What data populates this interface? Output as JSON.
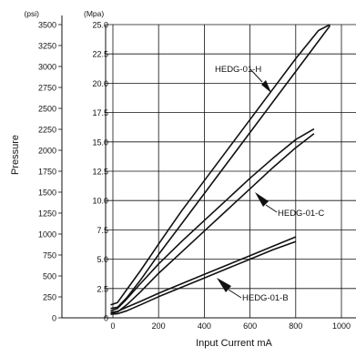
{
  "chart_data": {
    "type": "line",
    "xlabel": "Input Current mA",
    "ylabel": "Pressure",
    "y_left_unit": "(psi)",
    "y_right_unit": "(Mpa)",
    "xlim": [
      -40,
      1000
    ],
    "ylim_mpa": [
      0,
      25
    ],
    "ylim_psi": [
      0,
      3500
    ],
    "x_ticks": [
      "0",
      "200",
      "400",
      "600",
      "800",
      "1000"
    ],
    "y_ticks_psi": [
      "0",
      "250",
      "500",
      "750",
      "1000",
      "1250",
      "1500",
      "1750",
      "2000",
      "2250",
      "2500",
      "2750",
      "3000",
      "3250",
      "3500"
    ],
    "y_ticks_mpa": [
      "0",
      "2.5",
      "5.0",
      "7.5",
      "10.0",
      "12.5",
      "15.0",
      "17.5",
      "20.0",
      "22.5",
      "25.0"
    ],
    "grid": true,
    "series": [
      {
        "name": "HEDG-01-H",
        "lower": {
          "x": [
            -10,
            20,
            60,
            120,
            200,
            300,
            400,
            500,
            600,
            700,
            800,
            900,
            950
          ],
          "y": [
            0.8,
            0.9,
            1.7,
            3.2,
            5.4,
            8.0,
            10.6,
            13.2,
            15.8,
            18.4,
            21.0,
            23.6,
            24.9
          ]
        },
        "upper": {
          "x": [
            -10,
            20,
            60,
            120,
            200,
            300,
            400,
            500,
            600,
            700,
            800,
            900,
            950
          ],
          "y": [
            1.1,
            1.3,
            2.4,
            4.0,
            6.3,
            9.1,
            11.7,
            14.3,
            16.9,
            19.5,
            22.1,
            24.5,
            25.0
          ]
        }
      },
      {
        "name": "HEDG-01-C",
        "lower": {
          "x": [
            -10,
            20,
            60,
            120,
            200,
            300,
            400,
            500,
            600,
            700,
            800,
            880
          ],
          "y": [
            0.4,
            0.5,
            1.1,
            2.2,
            3.8,
            5.6,
            7.4,
            9.2,
            11.0,
            12.8,
            14.5,
            15.7
          ]
        },
        "upper": {
          "x": [
            -10,
            20,
            60,
            120,
            200,
            300,
            400,
            500,
            600,
            700,
            800,
            880
          ],
          "y": [
            0.6,
            0.8,
            1.6,
            2.9,
            4.6,
            6.5,
            8.3,
            10.1,
            11.9,
            13.6,
            15.2,
            16.1
          ]
        }
      },
      {
        "name": "HEDG-01-B",
        "lower": {
          "x": [
            -10,
            20,
            60,
            120,
            200,
            300,
            400,
            500,
            600,
            700,
            800
          ],
          "y": [
            0.3,
            0.35,
            0.6,
            1.1,
            1.8,
            2.6,
            3.4,
            4.2,
            5.0,
            5.8,
            6.5
          ]
        },
        "upper": {
          "x": [
            -10,
            20,
            60,
            120,
            200,
            300,
            400,
            500,
            600,
            700,
            800
          ],
          "y": [
            0.45,
            0.55,
            0.9,
            1.4,
            2.1,
            2.9,
            3.7,
            4.5,
            5.3,
            6.1,
            6.9
          ]
        }
      }
    ],
    "annotations": [
      "HEDG-01-H",
      "HEDG-01-C",
      "HEDG-01-B"
    ],
    "colors": {
      "line": "#111111",
      "grid": "#111111",
      "background": "#ffffff"
    }
  }
}
